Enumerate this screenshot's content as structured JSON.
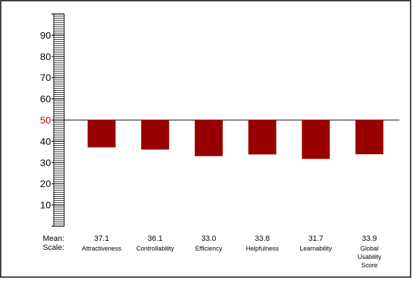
{
  "colors": {
    "bar": "#990000",
    "reference_label": "#cc0000",
    "axis": "#000000",
    "frame": "#000000"
  },
  "chart_data": {
    "type": "bar",
    "title": "",
    "xlabel": "",
    "ylabel": "",
    "ylim": [
      0,
      100
    ],
    "baseline": 50,
    "baseline_label": "50",
    "y_ticks": [
      "10",
      "20",
      "30",
      "40",
      "50",
      "60",
      "70",
      "80",
      "90"
    ],
    "row_labels": {
      "mean": "Mean:",
      "scale": "Scale:"
    },
    "categories": [
      "Attractiveness",
      "Controllability",
      "Efficiency",
      "Helpfulness",
      "Learnability",
      "Global Usability Score"
    ],
    "category_lines": [
      [
        "Attractiveness"
      ],
      [
        "Controllability"
      ],
      [
        "Efficiency"
      ],
      [
        "Helpfulness"
      ],
      [
        "Learnability"
      ],
      [
        "Global",
        "Usability",
        "Score"
      ]
    ],
    "mean_labels": [
      "37.1",
      "36.1",
      "33.0",
      "33.8",
      "31.7",
      "33.9"
    ],
    "values": [
      37.1,
      36.1,
      33.0,
      33.8,
      31.7,
      33.9
    ],
    "grid": false,
    "legend": "none"
  }
}
